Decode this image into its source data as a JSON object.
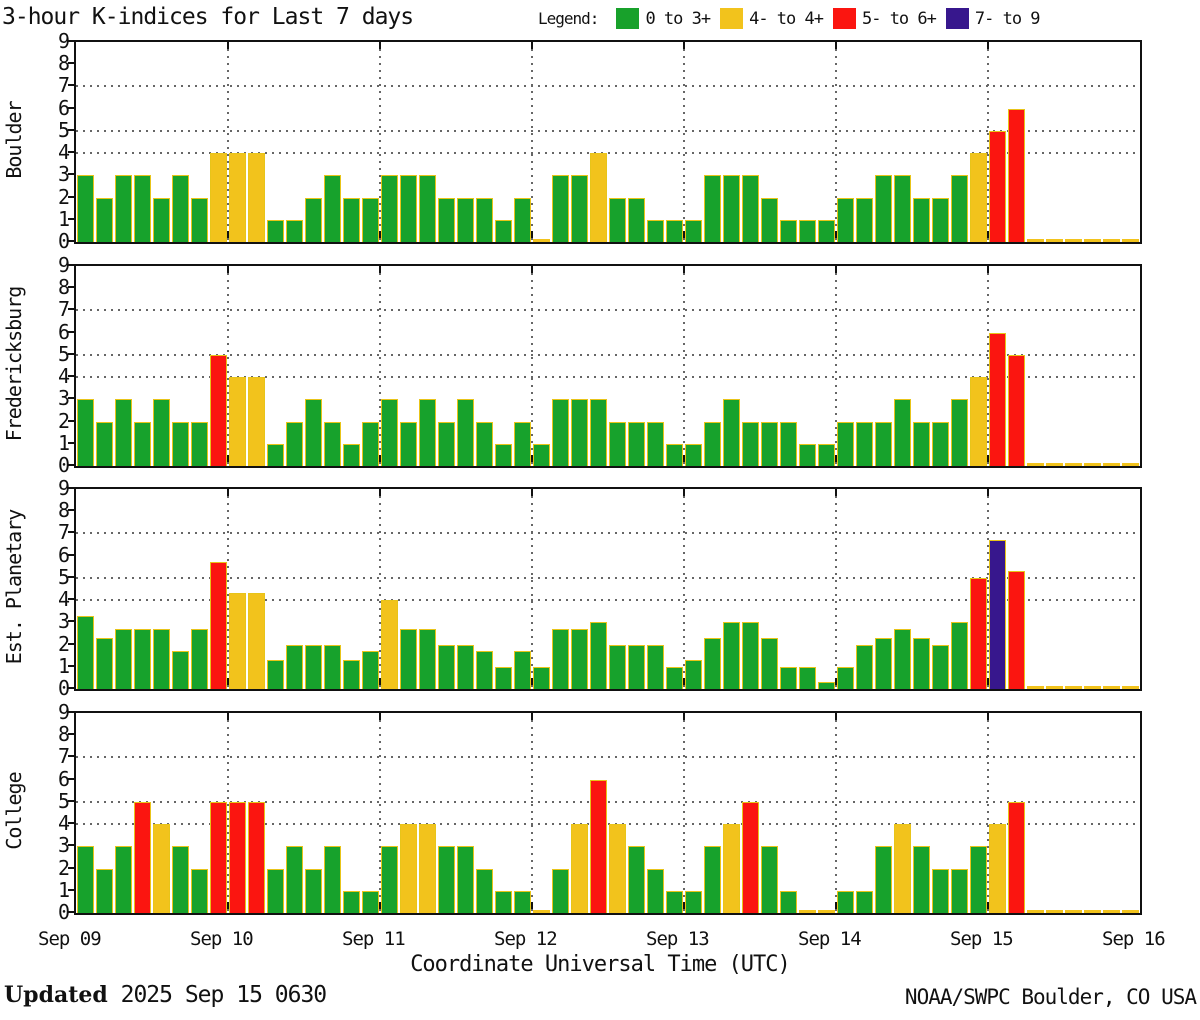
{
  "title": "3-hour K-indices for Last 7 days",
  "legend": {
    "label": "Legend:",
    "items": [
      {
        "label": "0 to 3+",
        "color": "#18a12b"
      },
      {
        "label": "4- to 4+",
        "color": "#f2c31c"
      },
      {
        "label": "5- to 6+",
        "color": "#fb1510"
      },
      {
        "label": "7- to 9",
        "color": "#37178d"
      }
    ]
  },
  "color_rules": [
    {
      "min": 6.5,
      "color": "#37178d"
    },
    {
      "min": 4.5,
      "color": "#fb1510"
    },
    {
      "min": 3.5,
      "color": "#f2c31c"
    },
    {
      "min": 0.001,
      "color": "#17a22c"
    }
  ],
  "zero_color": "#f2c31c",
  "x_axis": {
    "labels": [
      "Sep 09",
      "Sep 10",
      "Sep 11",
      "Sep 12",
      "Sep 13",
      "Sep 14",
      "Sep 15",
      "Sep 16"
    ],
    "title": "Coordinate Universal Time (UTC)"
  },
  "y_axis": {
    "ticks": [
      0,
      1,
      2,
      3,
      4,
      5,
      6,
      7,
      8,
      9
    ],
    "gridlines": [
      4,
      5,
      7
    ]
  },
  "footer": {
    "updated_label": "Updated",
    "updated_value": " 2025 Sep 15 0630",
    "credit": "NOAA/SWPC Boulder, CO USA"
  },
  "chart_data": {
    "type": "bar",
    "title": "3-hour K-indices for Last 7 days",
    "bin_hours": 3,
    "x_start": "Sep 09",
    "x_end": "Sep 16",
    "categories": [
      "Sep 09",
      "Sep 10",
      "Sep 11",
      "Sep 12",
      "Sep 13",
      "Sep 14",
      "Sep 15"
    ],
    "bins_per_day": 8,
    "ylim": [
      0,
      9
    ],
    "gridlines_y": [
      4,
      5,
      7
    ],
    "legend_position": "top",
    "series": [
      {
        "name": "Boulder",
        "values": [
          3,
          2,
          3,
          3,
          2,
          3,
          2,
          4,
          4,
          4,
          1,
          1,
          2,
          3,
          2,
          2,
          3,
          3,
          3,
          2,
          2,
          2,
          1,
          2,
          0,
          3,
          3,
          4,
          2,
          2,
          1,
          1,
          1,
          3,
          3,
          3,
          2,
          1,
          1,
          1,
          2,
          2,
          3,
          3,
          2,
          2,
          3,
          4,
          5,
          6,
          0,
          0,
          0,
          0,
          0,
          0
        ]
      },
      {
        "name": "Fredericksburg",
        "values": [
          3,
          2,
          3,
          2,
          3,
          2,
          2,
          5,
          4,
          4,
          1,
          2,
          3,
          2,
          1,
          2,
          3,
          2,
          3,
          2,
          3,
          2,
          1,
          2,
          1,
          3,
          3,
          3,
          2,
          2,
          2,
          1,
          1,
          2,
          3,
          2,
          2,
          2,
          1,
          1,
          2,
          2,
          2,
          3,
          2,
          2,
          3,
          4,
          6,
          5,
          0,
          0,
          0,
          0,
          0,
          0
        ]
      },
      {
        "name": "Est. Planetary",
        "values": [
          3.3,
          2.3,
          2.7,
          2.7,
          2.7,
          1.7,
          2.7,
          5.7,
          4.3,
          4.3,
          1.3,
          2,
          2,
          2,
          1.3,
          1.7,
          4,
          2.7,
          2.7,
          2,
          2,
          1.7,
          1,
          1.7,
          1,
          2.7,
          2.7,
          3,
          2,
          2,
          2,
          1,
          1.3,
          2.3,
          3,
          3,
          2.3,
          1,
          1,
          0.3,
          1,
          2,
          2.3,
          2.7,
          2.3,
          2,
          3,
          5,
          6.7,
          5.3,
          0,
          0,
          0,
          0,
          0,
          0
        ]
      },
      {
        "name": "College",
        "values": [
          3,
          2,
          3,
          5,
          4,
          3,
          2,
          5,
          5,
          5,
          2,
          3,
          2,
          3,
          1,
          1,
          3,
          4,
          4,
          3,
          3,
          2,
          1,
          1,
          0,
          2,
          4,
          6,
          4,
          3,
          2,
          1,
          1,
          3,
          4,
          5,
          3,
          1,
          0,
          0,
          1,
          1,
          3,
          4,
          3,
          2,
          2,
          3,
          4,
          5,
          0,
          0,
          0,
          0,
          0,
          0
        ]
      }
    ]
  }
}
